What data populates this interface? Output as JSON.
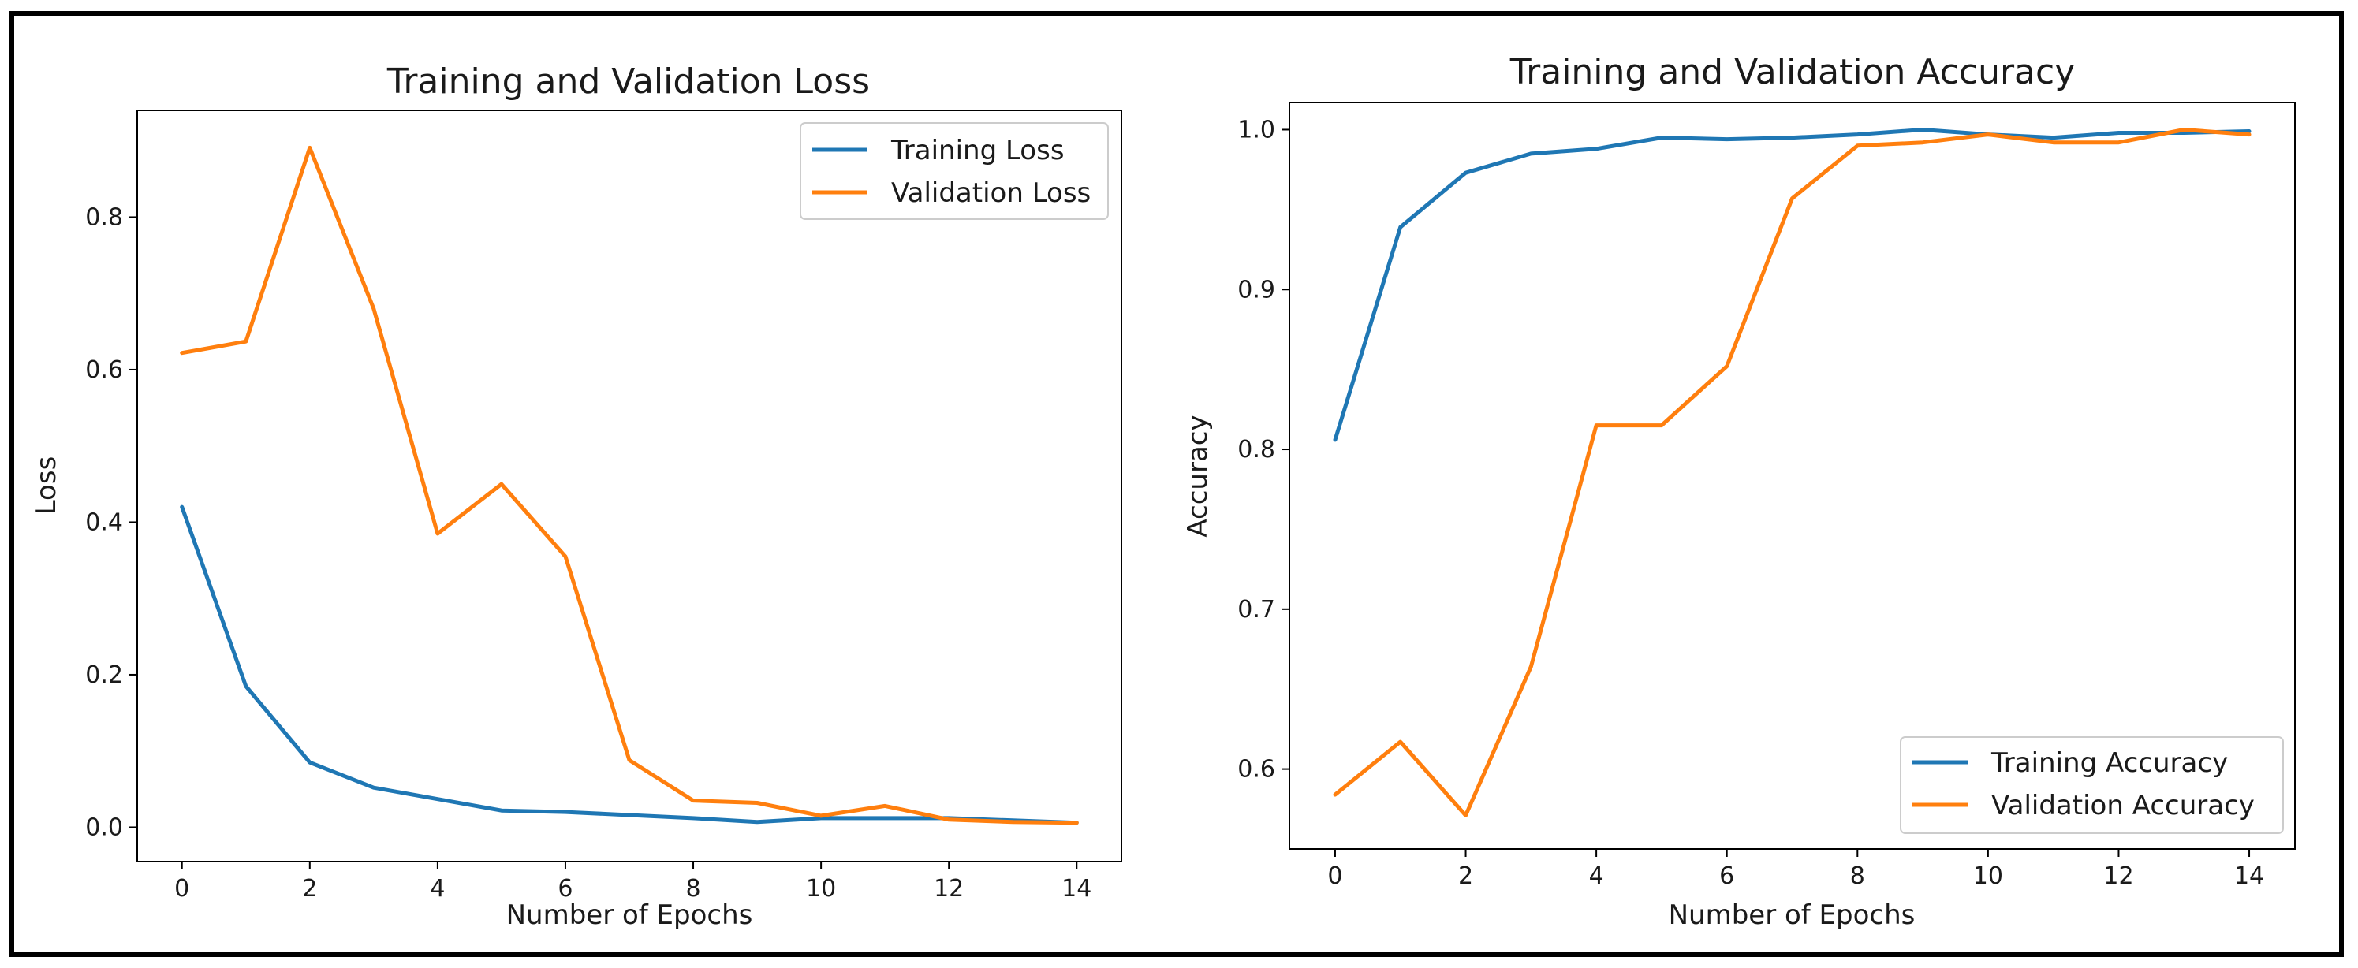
{
  "colors": {
    "training": "#1f77b4",
    "validation": "#ff7f0e",
    "frame": "#000000"
  },
  "chart_data": [
    {
      "type": "line",
      "title": "Training and Validation Loss",
      "xlabel": "Number of Epochs",
      "ylabel": "Loss",
      "xlim": [
        -0.7,
        14.7
      ],
      "ylim": [
        -0.045,
        0.94
      ],
      "xticks": [
        0,
        2,
        4,
        6,
        8,
        10,
        12,
        14
      ],
      "yticks": [
        0.0,
        0.2,
        0.4,
        0.6,
        0.8
      ],
      "ytick_labels": [
        "0.0",
        "0.2",
        "0.4",
        "0.6",
        "0.8"
      ],
      "legend_position": "upper right",
      "x": [
        0,
        1,
        2,
        3,
        4,
        5,
        6,
        7,
        8,
        9,
        10,
        11,
        12,
        13,
        14
      ],
      "series": [
        {
          "name": "Training Loss",
          "color_key": "training",
          "values": [
            0.42,
            0.185,
            0.085,
            0.052,
            0.037,
            0.022,
            0.02,
            0.016,
            0.012,
            0.007,
            0.012,
            0.012,
            0.012,
            0.009,
            0.006
          ]
        },
        {
          "name": "Validation Loss",
          "color_key": "validation",
          "values": [
            0.622,
            0.637,
            0.891,
            0.68,
            0.385,
            0.45,
            0.355,
            0.088,
            0.035,
            0.032,
            0.015,
            0.028,
            0.01,
            0.007,
            0.006
          ]
        }
      ]
    },
    {
      "type": "line",
      "title": "Training and Validation Accuracy",
      "xlabel": "Number of Epochs",
      "ylabel": "Accuracy",
      "xlim": [
        -0.7,
        14.7
      ],
      "ylim": [
        0.55,
        1.017
      ],
      "xticks": [
        0,
        2,
        4,
        6,
        8,
        10,
        12,
        14
      ],
      "yticks": [
        0.6,
        0.7,
        0.8,
        0.9,
        1.0
      ],
      "ytick_labels": [
        "0.6",
        "0.7",
        "0.8",
        "0.9",
        "1.0"
      ],
      "legend_position": "lower right",
      "x": [
        0,
        1,
        2,
        3,
        4,
        5,
        6,
        7,
        8,
        9,
        10,
        11,
        12,
        13,
        14
      ],
      "series": [
        {
          "name": "Training Accuracy",
          "color_key": "training",
          "values": [
            0.806,
            0.939,
            0.973,
            0.985,
            0.988,
            0.995,
            0.994,
            0.995,
            0.997,
            1.0,
            0.997,
            0.995,
            0.998,
            0.998,
            0.999
          ]
        },
        {
          "name": "Validation Accuracy",
          "color_key": "validation",
          "values": [
            0.584,
            0.617,
            0.571,
            0.664,
            0.815,
            0.815,
            0.852,
            0.957,
            0.99,
            0.992,
            0.997,
            0.992,
            0.992,
            1.0,
            0.997
          ]
        }
      ]
    }
  ]
}
